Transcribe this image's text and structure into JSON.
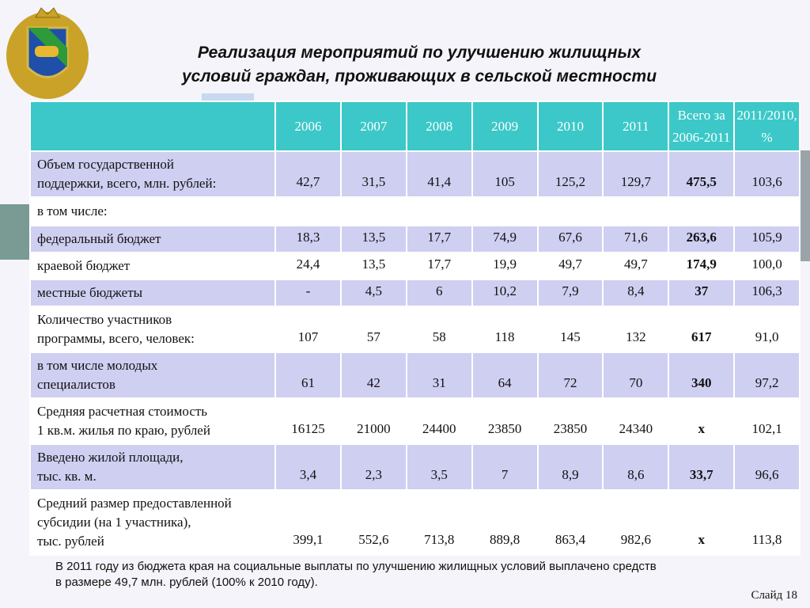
{
  "title": "Реализация мероприятий по улучшению жилищных\nусловий граждан, проживающих в сельской местности",
  "table": {
    "header": [
      "2006",
      "2007",
      "2008",
      "2009",
      "2010",
      "2011",
      "Всего за\n2006-2011",
      "2011/2010,\n%"
    ],
    "rows": [
      {
        "label": "Объем государственной\nподдержки, всего, млн. рублей:",
        "cells": [
          "42,7",
          "31,5",
          "41,4",
          "105",
          "125,2",
          "129,7",
          "475,5",
          "103,6"
        ]
      },
      {
        "label": "в том числе:",
        "cells": []
      },
      {
        "label": "федеральный бюджет",
        "cells": [
          "18,3",
          "13,5",
          "17,7",
          "74,9",
          "67,6",
          "71,6",
          "263,6",
          "105,9"
        ]
      },
      {
        "label": "краевой бюджет",
        "cells": [
          "24,4",
          "13,5",
          "17,7",
          "19,9",
          "49,7",
          "49,7",
          "174,9",
          "100,0"
        ]
      },
      {
        "label": "местные бюджеты",
        "cells": [
          "-",
          "4,5",
          "6",
          "10,2",
          "7,9",
          "8,4",
          "37",
          "106,3"
        ]
      },
      {
        "label": "Количество участников\nпрограммы, всего, человек:",
        "cells": [
          "107",
          "57",
          "58",
          "118",
          "145",
          "132",
          "617",
          "91,0"
        ]
      },
      {
        "label": "в том числе молодых\nспециалистов",
        "cells": [
          "61",
          "42",
          "31",
          "64",
          "72",
          "70",
          "340",
          "97,2"
        ]
      },
      {
        "label": "Средняя расчетная стоимость\n1 кв.м. жилья по краю, рублей",
        "cells": [
          "16125",
          "21000",
          "24400",
          "23850",
          "23850",
          "24340",
          "х",
          "102,1"
        ]
      },
      {
        "label": "Введено жилой площади,\nтыс. кв. м.",
        "cells": [
          "3,4",
          "2,3",
          "3,5",
          "7",
          "8,9",
          "8,6",
          "33,7",
          "96,6"
        ]
      },
      {
        "label": "Средний размер предоставленной\nсубсидии (на 1 участника),\nтыс. рублей",
        "cells": [
          "399,1",
          "552,6",
          "713,8",
          "889,8",
          "863,4",
          "982,6",
          "х",
          "113,8"
        ]
      }
    ]
  },
  "footnote": "В 2011 году из бюджета края на социальные выплаты по улучшению жилищных условий выплачено средств\nв размере 49,7 млн. рублей (100% к 2010 году).",
  "slide_number": "Слайд 18"
}
